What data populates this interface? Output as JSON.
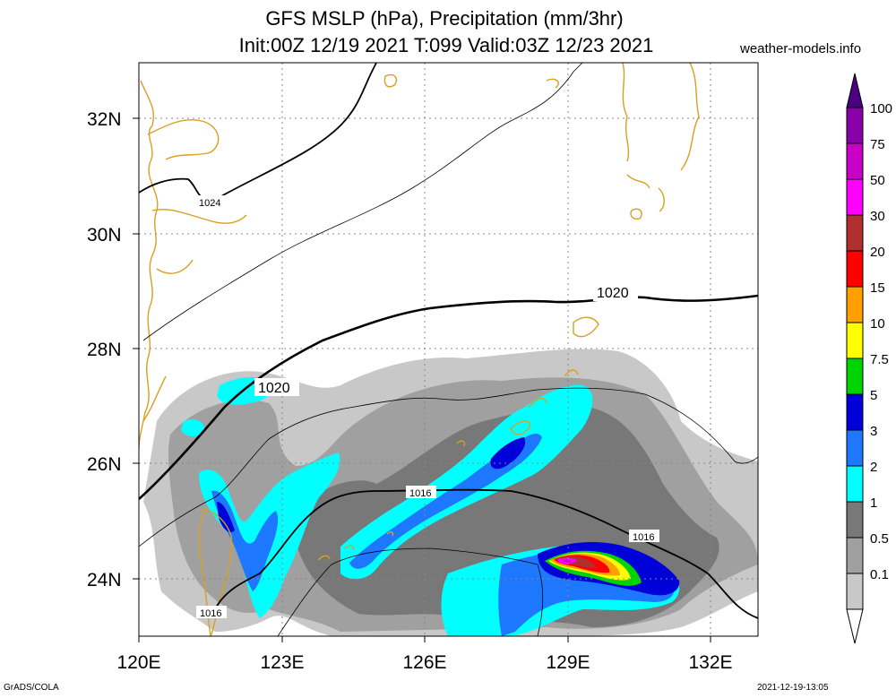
{
  "header": {
    "title_line1": "GFS MSLP (hPa), Precipitation (mm/3hr)",
    "title_line2": "Init:00Z 12/19 2021 T:099 Valid:03Z 12/23 2021",
    "site": "weather-models.info"
  },
  "footer": {
    "left": "GrADS/COLA",
    "right": "2021-12-19-13:05"
  },
  "map": {
    "lat_labels": [
      "32N",
      "30N",
      "28N",
      "26N",
      "24N"
    ],
    "lon_labels": [
      "120E",
      "123E",
      "126E",
      "129E",
      "132E"
    ],
    "isobar_labels": [
      {
        "text": "1024",
        "bold": false
      },
      {
        "text": "1020",
        "bold": true
      },
      {
        "text": "1020",
        "bold": true
      },
      {
        "text": "1016",
        "bold": false
      },
      {
        "text": "1016",
        "bold": false
      },
      {
        "text": "1016",
        "bold": false
      }
    ]
  },
  "legend": {
    "levels": [
      "100",
      "75",
      "50",
      "30",
      "20",
      "15",
      "10",
      "7.5",
      "5",
      "3",
      "2",
      "1",
      "0.5",
      "0.1"
    ],
    "colors": [
      "#8a00a8",
      "#c800c8",
      "#ff00ff",
      "#b03030",
      "#ff0000",
      "#ffa000",
      "#ffff00",
      "#00d400",
      "#0000d8",
      "#1e78ff",
      "#00ffff",
      "#787878",
      "#a0a0a0",
      "#c8c8c8"
    ],
    "top_color": "#4b0082"
  }
}
